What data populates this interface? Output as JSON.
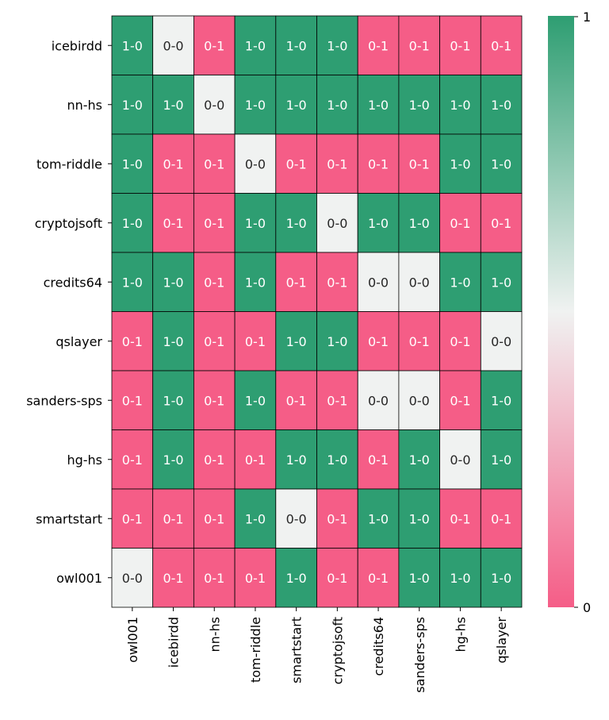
{
  "chart_data": {
    "type": "heatmap",
    "title": "",
    "xlabel": "",
    "ylabel": "",
    "rows": [
      "icebirdd",
      "nn-hs",
      "tom-riddle",
      "cryptojsoft",
      "credits64",
      "qslayer",
      "sanders-sps",
      "hg-hs",
      "smartstart",
      "owl001"
    ],
    "columns": [
      "owl001",
      "icebirdd",
      "nn-hs",
      "tom-riddle",
      "smartstart",
      "cryptojsoft",
      "credits64",
      "sanders-sps",
      "hg-hs",
      "qslayer"
    ],
    "labels": [
      [
        "1-0",
        "0-0",
        "0-1",
        "1-0",
        "1-0",
        "1-0",
        "0-1",
        "0-1",
        "0-1",
        "0-1"
      ],
      [
        "1-0",
        "1-0",
        "0-0",
        "1-0",
        "1-0",
        "1-0",
        "1-0",
        "1-0",
        "1-0",
        "1-0"
      ],
      [
        "1-0",
        "0-1",
        "0-1",
        "0-0",
        "0-1",
        "0-1",
        "0-1",
        "0-1",
        "1-0",
        "1-0"
      ],
      [
        "1-0",
        "0-1",
        "0-1",
        "1-0",
        "1-0",
        "0-0",
        "1-0",
        "1-0",
        "0-1",
        "0-1"
      ],
      [
        "1-0",
        "1-0",
        "0-1",
        "1-0",
        "0-1",
        "0-1",
        "0-0",
        "0-0",
        "1-0",
        "1-0"
      ],
      [
        "0-1",
        "1-0",
        "0-1",
        "0-1",
        "1-0",
        "1-0",
        "0-1",
        "0-1",
        "0-1",
        "0-0"
      ],
      [
        "0-1",
        "1-0",
        "0-1",
        "1-0",
        "0-1",
        "0-1",
        "0-0",
        "0-0",
        "0-1",
        "1-0"
      ],
      [
        "0-1",
        "1-0",
        "0-1",
        "0-1",
        "1-0",
        "1-0",
        "0-1",
        "1-0",
        "0-0",
        "1-0"
      ],
      [
        "0-1",
        "0-1",
        "0-1",
        "1-0",
        "0-0",
        "0-1",
        "1-0",
        "1-0",
        "0-1",
        "0-1"
      ],
      [
        "0-0",
        "0-1",
        "0-1",
        "0-1",
        "1-0",
        "0-1",
        "0-1",
        "1-0",
        "1-0",
        "1-0"
      ]
    ],
    "values": [
      [
        1,
        0.5,
        0,
        1,
        1,
        1,
        0,
        0,
        0,
        0
      ],
      [
        1,
        1,
        0.5,
        1,
        1,
        1,
        1,
        1,
        1,
        1
      ],
      [
        1,
        0,
        0,
        0.5,
        0,
        0,
        0,
        0,
        1,
        1
      ],
      [
        1,
        0,
        0,
        1,
        1,
        0.5,
        1,
        1,
        0,
        0
      ],
      [
        1,
        1,
        0,
        1,
        0,
        0,
        0.5,
        0.5,
        1,
        1
      ],
      [
        0,
        1,
        0,
        0,
        1,
        1,
        0,
        0,
        0,
        0.5
      ],
      [
        0,
        1,
        0,
        1,
        0,
        0,
        0.5,
        0.5,
        0,
        1
      ],
      [
        0,
        1,
        0,
        0,
        1,
        1,
        0,
        1,
        0.5,
        1
      ],
      [
        0,
        0,
        0,
        1,
        0.5,
        0,
        1,
        1,
        0,
        0
      ],
      [
        0.5,
        0,
        0,
        0,
        1,
        0,
        0,
        1,
        1,
        1
      ]
    ],
    "colorbar": {
      "min": 0,
      "max": 1,
      "ticks": [
        "0",
        "1"
      ]
    },
    "colors": {
      "low": "#f55d87",
      "mid": "#f0f2f1",
      "high": "#2e9e72"
    },
    "grid": false,
    "legend": "colorbar-right"
  }
}
